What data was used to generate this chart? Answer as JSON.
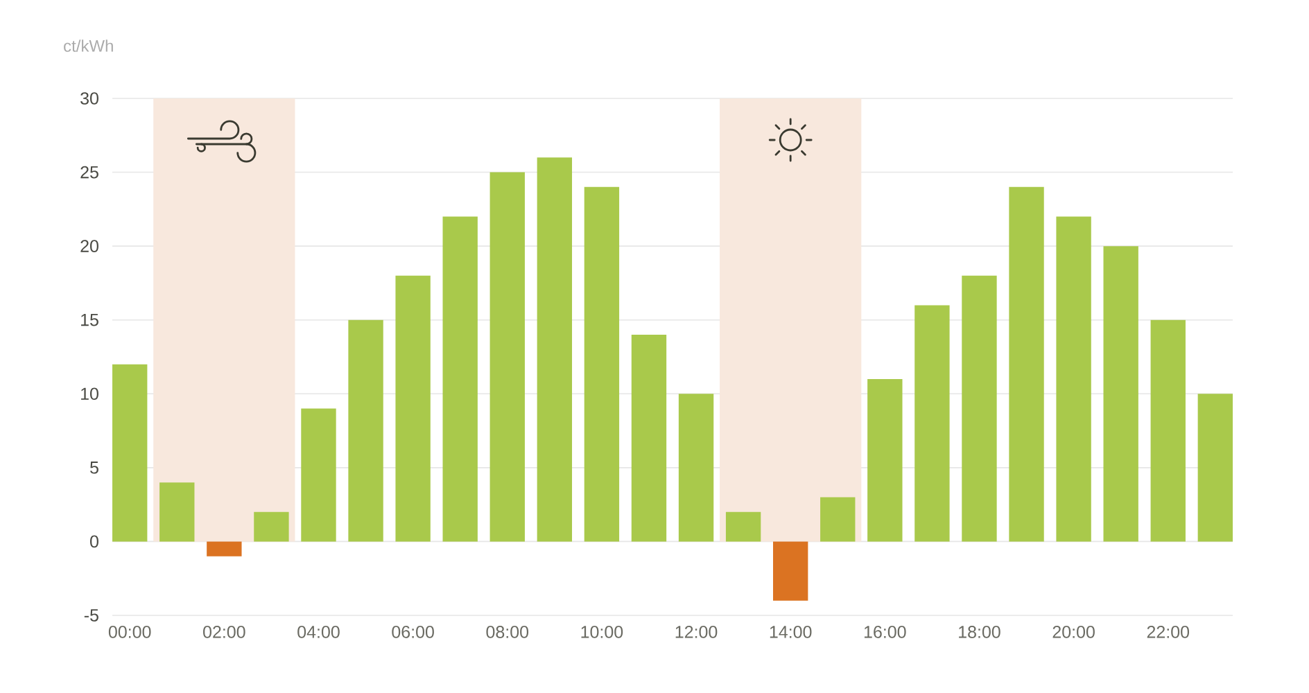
{
  "chart_data": {
    "type": "bar",
    "ylabel": "ct/kWh",
    "x": [
      0,
      1,
      2,
      3,
      4,
      5,
      6,
      7,
      8,
      9,
      10,
      11,
      12,
      13,
      14,
      15,
      16,
      17,
      18,
      19,
      20,
      21,
      22,
      23
    ],
    "values": [
      12,
      4,
      -1,
      2,
      9,
      15,
      18,
      22,
      25,
      26,
      24,
      14,
      10,
      2,
      -4,
      3,
      11,
      16,
      18,
      24,
      22,
      20,
      15,
      10
    ],
    "colors": [
      "#a9c94b",
      "#a9c94b",
      "#db7322",
      "#a9c94b",
      "#a9c94b",
      "#a9c94b",
      "#a9c94b",
      "#a9c94b",
      "#a9c94b",
      "#a9c94b",
      "#a9c94b",
      "#a9c94b",
      "#a9c94b",
      "#a9c94b",
      "#db7322",
      "#a9c94b",
      "#a9c94b",
      "#a9c94b",
      "#a9c94b",
      "#a9c94b",
      "#a9c94b",
      "#a9c94b",
      "#a9c94b",
      "#a9c94b"
    ],
    "xlim": [
      -0.37,
      23.37
    ],
    "xticks": [
      {
        "value": 0,
        "label": "00:00"
      },
      {
        "value": 2,
        "label": "02:00"
      },
      {
        "value": 4,
        "label": "04:00"
      },
      {
        "value": 6,
        "label": "06:00"
      },
      {
        "value": 8,
        "label": "08:00"
      },
      {
        "value": 10,
        "label": "10:00"
      },
      {
        "value": 12,
        "label": "12:00"
      },
      {
        "value": 14,
        "label": "14:00"
      },
      {
        "value": 16,
        "label": "16:00"
      },
      {
        "value": 18,
        "label": "18:00"
      },
      {
        "value": 20,
        "label": "20:00"
      },
      {
        "value": 22,
        "label": "22:00"
      }
    ],
    "ylim": [
      -5,
      30
    ],
    "yticks": [
      -5,
      0,
      5,
      10,
      15,
      20,
      25,
      30
    ],
    "grid": "y",
    "bands": [
      {
        "axis": "x",
        "from": 0.5,
        "to": 3.5,
        "color": "#f8e8dd"
      },
      {
        "axis": "x",
        "from": 12.5,
        "to": 15.5,
        "color": "#f8e8dd"
      }
    ]
  }
}
